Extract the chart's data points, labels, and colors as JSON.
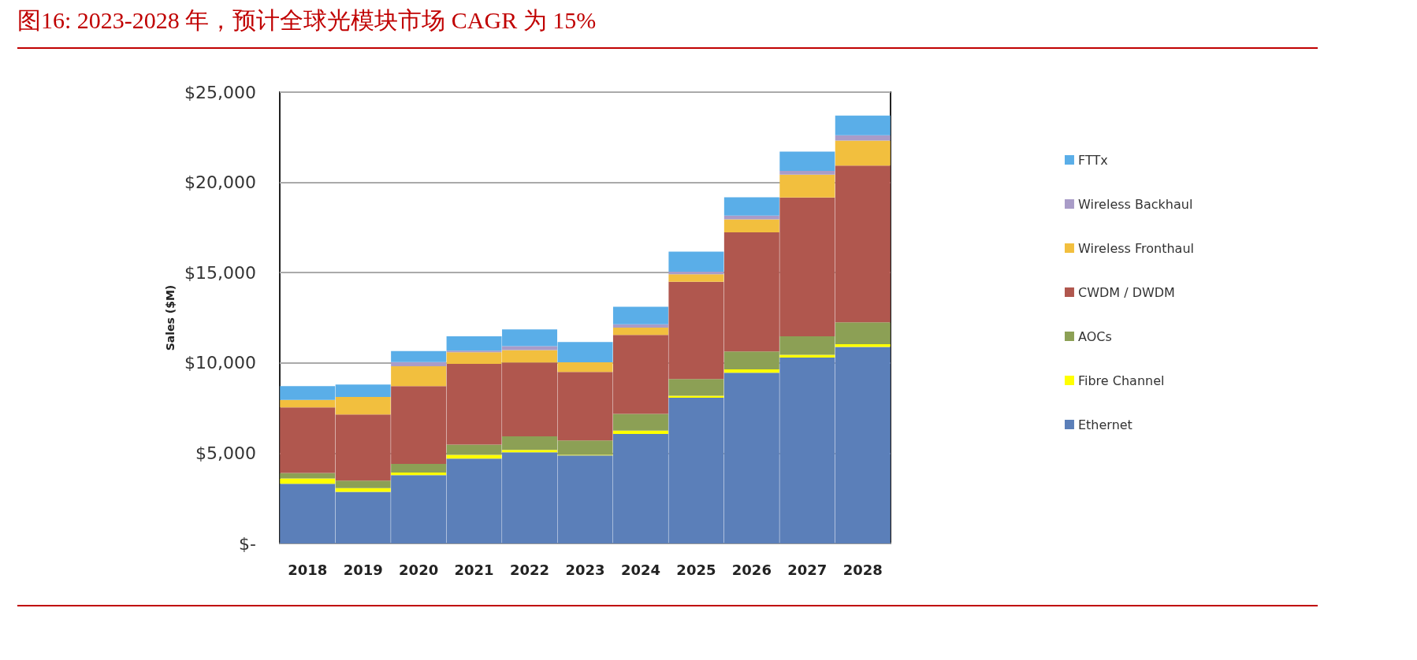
{
  "chart_data": {
    "type": "bar",
    "stacked": true,
    "title": "图16:   2023-2028 年，预计全球光模块市场 CAGR 为 15%",
    "ylabel": "Sales ($M)",
    "categories": [
      "2018",
      "2019",
      "2020",
      "2021",
      "2022",
      "2023",
      "2024",
      "2025",
      "2026",
      "2027",
      "2028"
    ],
    "series": [
      {
        "name": "Ethernet",
        "color": "#5b7fb9",
        "values": [
          3300,
          2860,
          3790,
          4700,
          5050,
          4880,
          6070,
          8070,
          9460,
          10300,
          10890
        ]
      },
      {
        "name": "Fibre Channel",
        "color": "#ffff00",
        "values": [
          300,
          210,
          140,
          210,
          130,
          30,
          180,
          110,
          180,
          150,
          150
        ]
      },
      {
        "name": "AOCs",
        "color": "#8ca055",
        "values": [
          300,
          410,
          480,
          570,
          750,
          800,
          930,
          930,
          990,
          1030,
          1210
        ]
      },
      {
        "name": "CWDM / DWDM",
        "color": "#b0574e",
        "values": [
          3640,
          3660,
          4300,
          4470,
          4090,
          3790,
          4370,
          5390,
          6600,
          7680,
          8680
        ]
      },
      {
        "name": "Wireless Fronthaul",
        "color": "#f2bf3e",
        "values": [
          410,
          980,
          1110,
          640,
          690,
          540,
          410,
          410,
          720,
          1270,
          1390
        ]
      },
      {
        "name": "Wireless Backhaul",
        "color": "#a99cc8",
        "values": [
          0,
          0,
          230,
          90,
          220,
          0,
          180,
          140,
          210,
          210,
          290
        ]
      },
      {
        "name": "FTTx",
        "color": "#5aaee8",
        "values": [
          760,
          680,
          610,
          800,
          930,
          1120,
          970,
          1110,
          1020,
          1070,
          1090
        ]
      }
    ],
    "ylim": [
      0,
      25000
    ],
    "yticks": [
      {
        "value": 0,
        "label": "$-"
      },
      {
        "value": 5000,
        "label": "$5,000"
      },
      {
        "value": 10000,
        "label": "$10,000"
      },
      {
        "value": 15000,
        "label": "$15,000"
      },
      {
        "value": 20000,
        "label": "$20,000"
      },
      {
        "value": 25000,
        "label": "$25,000"
      }
    ],
    "grid": "y",
    "legend": "right"
  }
}
